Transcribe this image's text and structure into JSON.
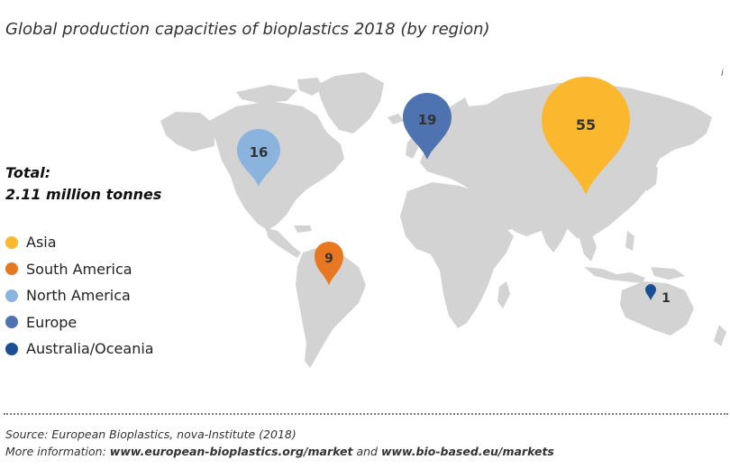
{
  "title": "Global production capacities of bioplastics 2018 (by region)",
  "corner_mark": "i",
  "total": {
    "line1": "Total:",
    "line2": "2.11 million tonnes"
  },
  "legend": [
    {
      "label": "Asia",
      "color": "#fbb82f"
    },
    {
      "label": "South America",
      "color": "#e87722"
    },
    {
      "label": "North America",
      "color": "#8ab4dd"
    },
    {
      "label": "Europe",
      "color": "#4f72b0"
    },
    {
      "label": "Australia/Oceania",
      "color": "#1b4f93"
    }
  ],
  "markers": [
    {
      "region": "North America",
      "value": "16",
      "color": "#8ab4dd"
    },
    {
      "region": "Europe",
      "value": "19",
      "color": "#4f72b0"
    },
    {
      "region": "Asia",
      "value": "55",
      "color": "#fbb82f"
    },
    {
      "region": "South America",
      "value": "9",
      "color": "#e87722"
    },
    {
      "region": "Australia/Oceania",
      "value": "1",
      "color": "#1b4f93"
    }
  ],
  "footer": {
    "source": "Source: European Bioplastics, nova-Institute (2018)",
    "more_prefix": "More information: ",
    "link1": "www.european-bioplastics.org/market",
    "and": " and ",
    "link2": "www.bio-based.eu/markets"
  }
}
